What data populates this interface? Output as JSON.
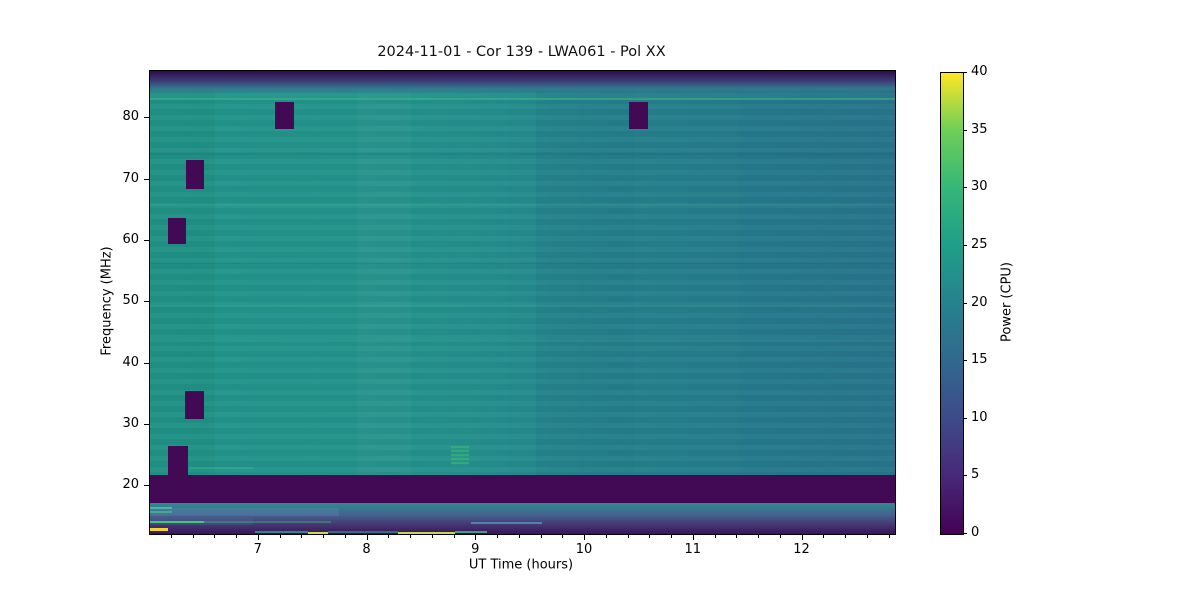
{
  "chart_data": {
    "type": "heatmap",
    "title": "2024-11-01 - Cor 139 - LWA061 - Pol XX",
    "xlabel": "UT Time (hours)",
    "ylabel": "Frequency (MHz)",
    "colorbar_label": "Power (CPU)",
    "x_range": [
      6.0,
      12.85
    ],
    "y_range": [
      12.2,
      87.7
    ],
    "x_major_ticks": [
      7,
      8,
      9,
      10,
      11,
      12
    ],
    "x_minor_step": 0.2,
    "y_major_ticks": [
      20,
      30,
      40,
      50,
      60,
      70,
      80
    ],
    "grid": false,
    "legend": "colorbar-right",
    "colorbar": {
      "min": 0,
      "max": 40,
      "ticks": [
        0,
        5,
        10,
        15,
        20,
        25,
        30,
        35,
        40
      ],
      "colormap": "viridis",
      "stops": [
        "#440154",
        "#482878",
        "#3e4a89",
        "#31688e",
        "#26828e",
        "#1f9e89",
        "#35b779",
        "#6ece58",
        "#fde725"
      ]
    },
    "colors": {
      "flagged": "#420a54",
      "bg_left": "#23968b",
      "bg_mid1": "#24928c",
      "bg_mid2": "#26858e",
      "bg_right": "#287b8e",
      "top_dark": "#2e0b49",
      "top_mid": "#3c3a74",
      "top_teal": "#33778e",
      "bottom_teal": "#2e8a8e",
      "bottom_blue": "#44638f",
      "bottom_violet": "#443c74",
      "bottom_dark": "#39145a"
    },
    "background_power_typical": {
      "left_of_plot": 21,
      "right_of_plot": 17
    },
    "features": {
      "top_edge_band": {
        "f0": 84.0,
        "f1": 87.7,
        "power": 0
      },
      "bright_line": {
        "f": 83.3,
        "power": 24
      },
      "flagged_band": {
        "f0": 17.2,
        "f1": 21.8,
        "power": 0
      },
      "rfi_flagged_blobs": [
        {
          "t0": 7.15,
          "t1": 7.32,
          "f0": 78.3,
          "f1": 82.6
        },
        {
          "t0": 6.33,
          "t1": 6.5,
          "f0": 68.5,
          "f1": 73.2
        },
        {
          "t0": 6.17,
          "t1": 6.33,
          "f0": 59.5,
          "f1": 63.7
        },
        {
          "t0": 6.32,
          "t1": 6.5,
          "f0": 31.0,
          "f1": 35.5
        },
        {
          "t0": 6.17,
          "t1": 6.35,
          "f0": 21.8,
          "f1": 26.6
        },
        {
          "t0": 10.4,
          "t1": 10.58,
          "f0": 78.3,
          "f1": 82.6
        }
      ],
      "bright_patch": {
        "t0": 8.77,
        "t1": 8.93,
        "f0": 23.3,
        "f1": 26.5,
        "power": 26
      },
      "faint_rows": [
        {
          "f": 43.8,
          "color": "rgba(120,220,150,0.10)",
          "h": 2
        },
        {
          "f": 66.0,
          "color": "rgba(140,230,160,0.07)",
          "h": 2
        },
        {
          "f": 49.5,
          "color": "rgba(140,230,160,0.06)",
          "h": 2
        },
        {
          "f": 74.5,
          "color": "rgba(0,0,50,0.05)",
          "h": 3
        },
        {
          "f": 56.5,
          "color": "rgba(0,0,50,0.05)",
          "h": 2
        },
        {
          "f": 23.2,
          "color": "rgba(80,200,140,0.25)",
          "h": 2,
          "t0": 6.37,
          "t1": 6.95
        }
      ],
      "faint_cols": [
        {
          "t0": 9.55,
          "t1": 10.45,
          "color": "rgba(15,25,90,0.05)"
        },
        {
          "t0": 10.45,
          "t1": 11.4,
          "color": "rgba(15,25,90,0.035)"
        },
        {
          "t0": 11.4,
          "t1": 12.85,
          "color": "rgba(15,25,90,0.05)"
        },
        {
          "t0": 7.9,
          "t1": 8.4,
          "color": "rgba(255,255,255,0.025)"
        },
        {
          "t0": 6.0,
          "t1": 6.6,
          "color": "rgba(0,40,30,0.04)"
        }
      ],
      "bottom_region": {
        "f_top": 17.2,
        "lines": [
          {
            "f": 16.65,
            "t0": 6.0,
            "t1": 6.2,
            "color": "#3fc488",
            "h": 2
          },
          {
            "f": 16.0,
            "t0": 6.0,
            "t1": 6.2,
            "color": "#37b87e",
            "h": 2
          },
          {
            "f0": 15.2,
            "f1": 16.5,
            "t0": 6.0,
            "t1": 7.74,
            "color": "rgba(95,140,185,0.30)"
          },
          {
            "f0": 13.6,
            "f1": 14.9,
            "t0": 6.0,
            "t1": 6.95,
            "color": "rgba(70,100,150,0.35)"
          },
          {
            "f": 14.3,
            "t0": 6.0,
            "t1": 6.5,
            "color": "#45c773",
            "h": 2
          },
          {
            "f": 14.3,
            "t0": 6.5,
            "t1": 7.66,
            "color": "rgba(69,199,115,0.35)",
            "h": 2
          },
          {
            "f": 13.2,
            "t0": 6.0,
            "t1": 6.17,
            "color": "#f6d32e",
            "h": 3
          },
          {
            "f": 14.1,
            "t0": 8.95,
            "t1": 9.6,
            "color": "rgba(90,150,200,0.75)",
            "h": 2
          },
          {
            "f": 12.7,
            "t0": 6.97,
            "t1": 7.45,
            "color": "rgba(60,170,160,0.70)",
            "h": 2
          },
          {
            "f": 12.6,
            "t0": 7.45,
            "t1": 7.64,
            "color": "#cfdb4b",
            "h": 2
          },
          {
            "f": 12.65,
            "t0": 7.64,
            "t1": 8.28,
            "color": "rgba(60,170,160,0.55)",
            "h": 2
          },
          {
            "f": 12.6,
            "t0": 8.28,
            "t1": 8.8,
            "color": "#c5d94e",
            "h": 2
          },
          {
            "f": 12.65,
            "t0": 8.8,
            "t1": 9.1,
            "color": "rgba(70,185,150,0.80)",
            "h": 2
          }
        ]
      }
    }
  }
}
